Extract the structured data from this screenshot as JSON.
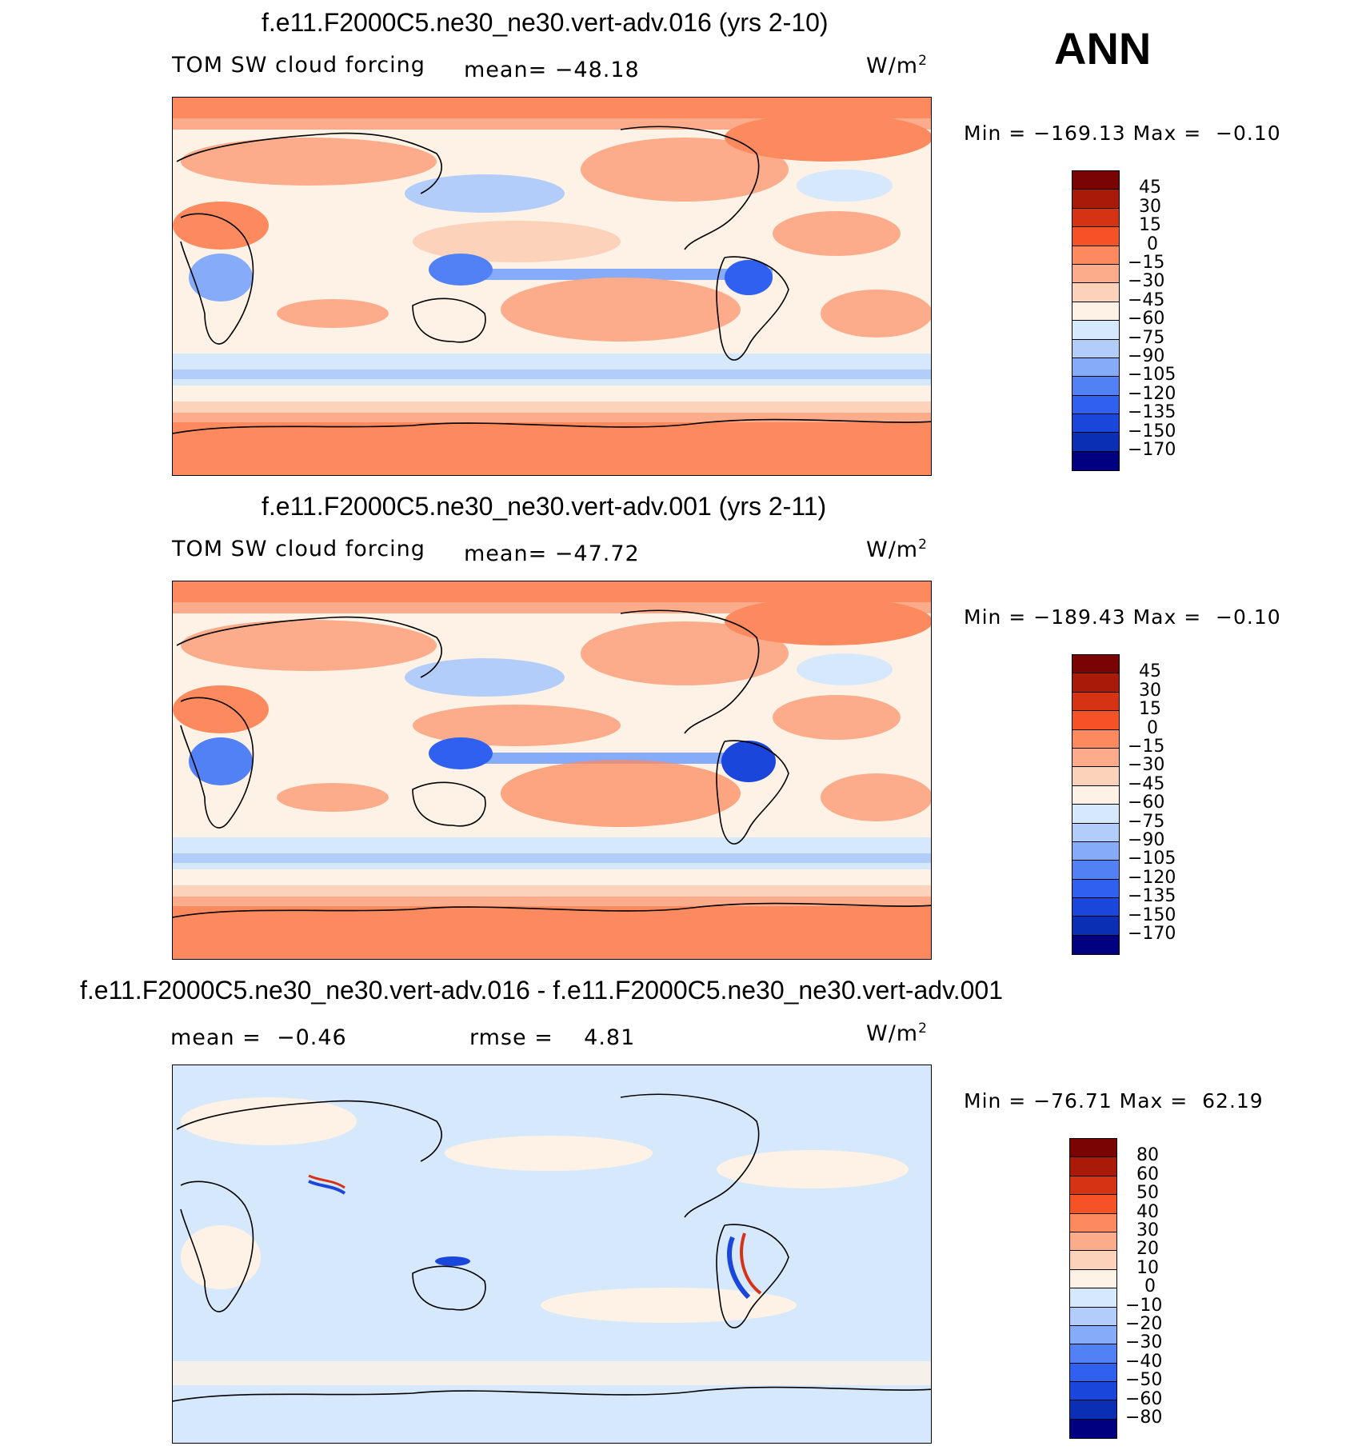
{
  "season": "ANN",
  "colors": {
    "ocean_levels": [
      "#000080",
      "#0a2fb4",
      "#1a46dc",
      "#2f60f0",
      "#5280f5",
      "#86abf9",
      "#b3cdfb",
      "#d6e8fc",
      "#fdf2e5",
      "#fdd2ba",
      "#fcac8a",
      "#fc8a5e",
      "#f55225",
      "#d53314",
      "#a91a08",
      "#7a0403"
    ],
    "map_border": "#000000"
  },
  "panels": [
    {
      "id": "panel-1",
      "title": "f.e11.F2000C5.ne30_ne30.vert-adv.016 (yrs 2-10)",
      "left_label": "TOM SW cloud forcing",
      "stat_label": "mean= −48.18",
      "units": "W/m",
      "units_sup": "2",
      "minmax": "Min = −169.13 Max =  −0.10",
      "colorbar_labels": [
        "45",
        "30",
        "15",
        "0",
        "−15",
        "−30",
        "−45",
        "−60",
        "−75",
        "−90",
        "−105",
        "−120",
        "−135",
        "−150",
        "−170"
      ]
    },
    {
      "id": "panel-2",
      "title": "f.e11.F2000C5.ne30_ne30.vert-adv.001 (yrs 2-11)",
      "left_label": "TOM SW cloud forcing",
      "stat_label": "mean= −47.72",
      "units": "W/m",
      "units_sup": "2",
      "minmax": "Min = −189.43 Max =  −0.10",
      "colorbar_labels": [
        "45",
        "30",
        "15",
        "0",
        "−15",
        "−30",
        "−45",
        "−60",
        "−75",
        "−90",
        "−105",
        "−120",
        "−135",
        "−150",
        "−170"
      ]
    },
    {
      "id": "panel-3",
      "title": "f.e11.F2000C5.ne30_ne30.vert-adv.016 - f.e11.F2000C5.ne30_ne30.vert-adv.001",
      "left_label": "mean =  −0.46",
      "stat_label": "rmse =    4.81",
      "units": "W/m",
      "units_sup": "2",
      "minmax": "Min = −76.71 Max =  62.19",
      "colorbar_labels": [
        "80",
        "60",
        "50",
        "40",
        "30",
        "20",
        "10",
        "0",
        "−10",
        "−20",
        "−30",
        "−40",
        "−50",
        "−60",
        "−80"
      ]
    }
  ]
}
